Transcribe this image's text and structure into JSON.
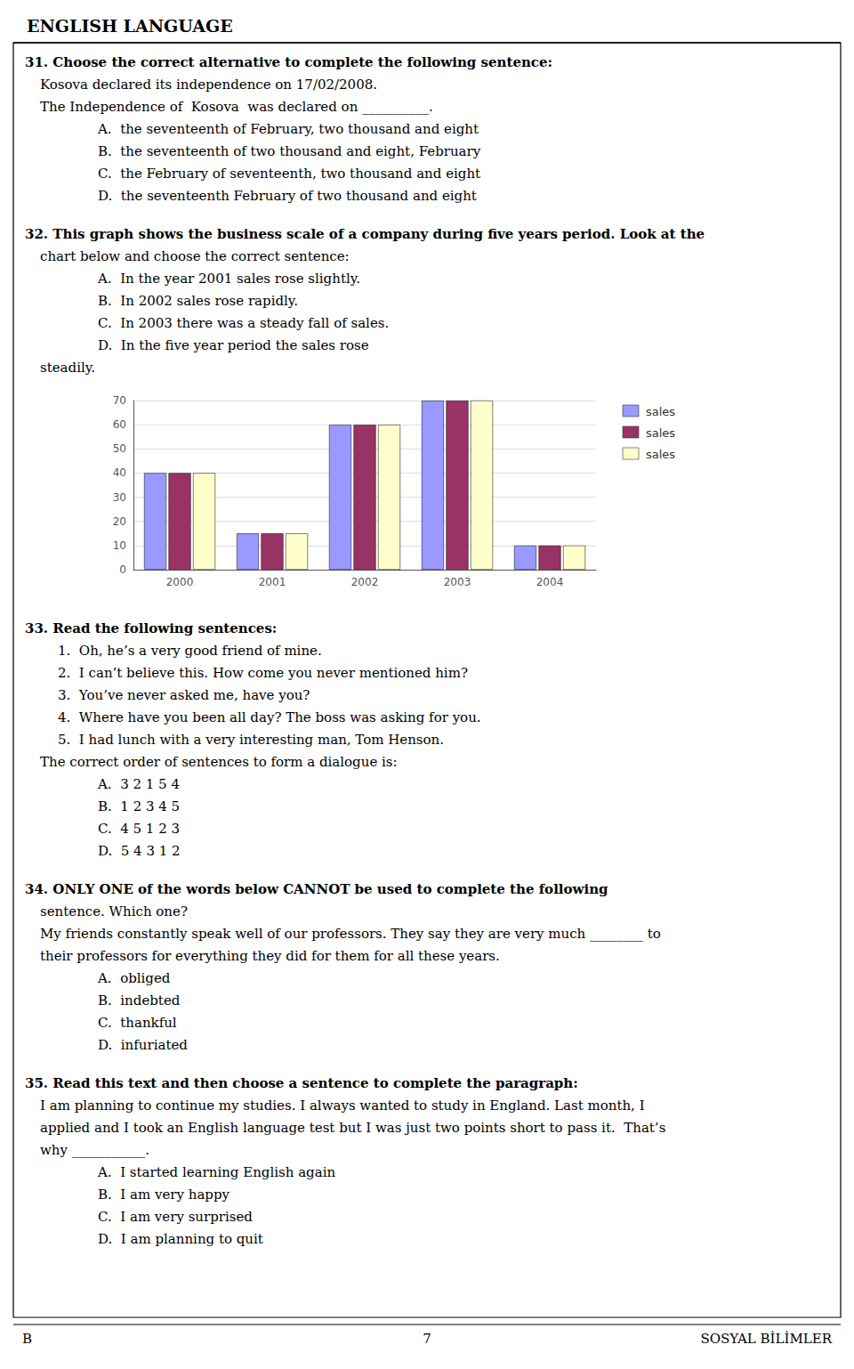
{
  "chart_data": {
    "type": "bar",
    "title": "ENGLISH LANGUAGE",
    "categories": [
      "2000",
      "2001",
      "2002",
      "2003",
      "2004"
    ],
    "series": [
      {
        "name": "sales",
        "color": "#9999ff",
        "values": [
          40,
          15,
          60,
          70,
          10
        ]
      },
      {
        "name": "sales",
        "color": "#993366",
        "values": [
          40,
          15,
          60,
          70,
          10
        ]
      },
      {
        "name": "sales",
        "color": "#ffffcc",
        "values": [
          40,
          15,
          60,
          70,
          10
        ]
      }
    ],
    "ylim": [
      0,
      70
    ],
    "yticks": [
      0,
      10,
      20,
      30,
      40,
      50,
      60,
      70
    ],
    "grid": true,
    "legend": "right",
    "annotations": [
      "31. Choose the correct alternative to complete the following sentence:",
      "Kosova declared its independence on 17/02/2008.",
      "The Independence of  Kosova  was declared on __________.",
      "A.  the seventeenth of February, two thousand and eight",
      "B.  the seventeenth of two thousand and eight, February",
      "C.  the February of seventeenth, two thousand and eight",
      "D.  the seventeenth February of two thousand and eight",
      "32. This graph shows the business scale of a company during five years period. Look at the",
      "chart below and choose the correct sentence:",
      "A.  In the year 2001 sales rose slightly.",
      "B.  In 2002 sales rose rapidly.",
      "C.  In 2003 there was a steady fall of sales.",
      "D.  In the five year period the sales rose",
      "steadily.",
      "33. Read the following sentences:",
      "1.  Oh, he’s a very good friend of mine.",
      "2.  I can’t believe this. How come you never mentioned him?",
      "3.  You’ve never asked me, have you?",
      "4.  Where have you been all day? The boss was asking for you.",
      "5.  I had lunch with a very interesting man, Tom Henson.",
      "The correct order of sentences to form a dialogue is:",
      "A.  3 2 1 5 4",
      "B.  1 2 3 4 5",
      "C.  4 5 1 2 3",
      "D.  5 4 3 1 2",
      "34. ONLY ONE of the words below CANNOT be used to complete the following",
      "sentence. Which one?",
      "My friends constantly speak well of our professors. They say they are very much ________ to",
      "their professors for everything they did for them for all these years.",
      "A.  obliged",
      "B.  indebted",
      "C.  thankful",
      "D.  infuriated",
      "35. Read this text and then choose a sentence to complete the paragraph:",
      "I am planning to continue my studies. I always wanted to study in England. Last month, I",
      "applied and I took an English language test but I was just two points short to pass it.  That’s",
      "why ___________.",
      "A.  I started learning English again",
      "B.  I am very happy",
      "C.  I am very surprised",
      "D.  I am planning to quit",
      "B",
      "7",
      "SOSYAL BİLİMLER"
    ]
  }
}
